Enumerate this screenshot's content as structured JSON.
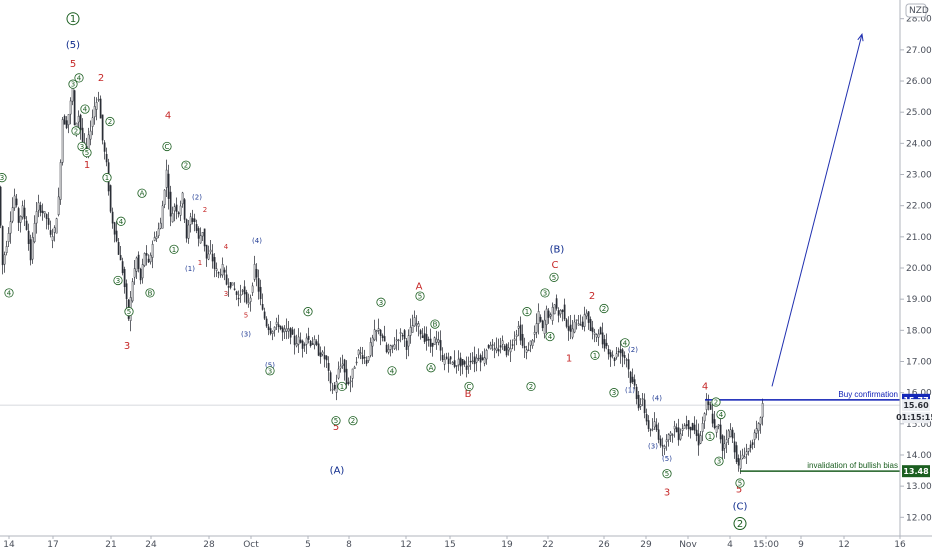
{
  "chart_data": {
    "type": "candlestick",
    "symbol": "NZD",
    "y_axis": {
      "ylim": [
        11.4,
        28.6
      ],
      "ticks": [
        "28.00",
        "27.00",
        "26.00",
        "25.00",
        "24.00",
        "23.00",
        "22.00",
        "21.00",
        "20.00",
        "19.00",
        "18.00",
        "17.00",
        "16.00",
        "15.00",
        "14.00",
        "13.00",
        "12.00"
      ]
    },
    "x_axis": {
      "ticks": [
        "14",
        "17",
        "21",
        "24",
        "28",
        "Oct",
        "5",
        "8",
        "12",
        "15",
        "19",
        "22",
        "26",
        "29",
        "Nov",
        "4",
        "15:00",
        "9",
        "12",
        "16"
      ]
    },
    "price_path": [
      [
        0,
        22.6
      ],
      [
        4,
        20.1
      ],
      [
        8,
        20.8
      ],
      [
        12,
        21.6
      ],
      [
        16,
        22.3
      ],
      [
        20,
        21.5
      ],
      [
        24,
        21.9
      ],
      [
        28,
        21.3
      ],
      [
        32,
        20.3
      ],
      [
        36,
        21.5
      ],
      [
        40,
        22.0
      ],
      [
        44,
        21.8
      ],
      [
        48,
        21.6
      ],
      [
        52,
        21.0
      ],
      [
        56,
        21.2
      ],
      [
        60,
        22.2
      ],
      [
        64,
        24.8
      ],
      [
        68,
        24.6
      ],
      [
        72,
        25.3
      ],
      [
        74,
        25.8
      ],
      [
        76,
        24.5
      ],
      [
        80,
        24.9
      ],
      [
        84,
        24.0
      ],
      [
        88,
        23.8
      ],
      [
        92,
        24.5
      ],
      [
        96,
        25.2
      ],
      [
        100,
        25.5
      ],
      [
        104,
        24.1
      ],
      [
        108,
        23.3
      ],
      [
        112,
        21.8
      ],
      [
        116,
        21.2
      ],
      [
        120,
        20.5
      ],
      [
        124,
        19.9
      ],
      [
        128,
        18.9
      ],
      [
        130,
        18.4
      ],
      [
        134,
        19.6
      ],
      [
        138,
        20.3
      ],
      [
        142,
        19.6
      ],
      [
        146,
        20.5
      ],
      [
        150,
        20.1
      ],
      [
        154,
        20.8
      ],
      [
        158,
        21.1
      ],
      [
        162,
        21.4
      ],
      [
        166,
        22.6
      ],
      [
        168,
        23.1
      ],
      [
        172,
        21.6
      ],
      [
        176,
        22.0
      ],
      [
        180,
        21.8
      ],
      [
        184,
        22.3
      ],
      [
        188,
        21.0
      ],
      [
        192,
        21.6
      ],
      [
        196,
        21.5
      ],
      [
        200,
        20.9
      ],
      [
        204,
        21.2
      ],
      [
        208,
        20.3
      ],
      [
        212,
        20.5
      ],
      [
        216,
        20.0
      ],
      [
        220,
        19.8
      ],
      [
        224,
        20.0
      ],
      [
        228,
        19.5
      ],
      [
        232,
        19.5
      ],
      [
        236,
        19.3
      ],
      [
        240,
        19.0
      ],
      [
        244,
        19.4
      ],
      [
        248,
        18.8
      ],
      [
        252,
        19.1
      ],
      [
        256,
        20.0
      ],
      [
        260,
        19.3
      ],
      [
        264,
        18.6
      ],
      [
        268,
        18.2
      ],
      [
        272,
        18.0
      ],
      [
        276,
        18.1
      ],
      [
        280,
        18.2
      ],
      [
        284,
        17.9
      ],
      [
        288,
        18.0
      ],
      [
        292,
        17.9
      ],
      [
        296,
        17.6
      ],
      [
        300,
        17.7
      ],
      [
        304,
        17.5
      ],
      [
        308,
        17.8
      ],
      [
        312,
        17.6
      ],
      [
        316,
        17.6
      ],
      [
        320,
        17.3
      ],
      [
        324,
        17.2
      ],
      [
        328,
        17.0
      ],
      [
        332,
        16.2
      ],
      [
        336,
        16.1
      ],
      [
        340,
        16.7
      ],
      [
        344,
        17.0
      ],
      [
        348,
        16.3
      ],
      [
        352,
        16.4
      ],
      [
        356,
        16.9
      ],
      [
        360,
        17.3
      ],
      [
        364,
        17.2
      ],
      [
        368,
        17.0
      ],
      [
        372,
        17.5
      ],
      [
        376,
        17.9
      ],
      [
        380,
        18.0
      ],
      [
        384,
        17.8
      ],
      [
        388,
        17.3
      ],
      [
        392,
        17.4
      ],
      [
        396,
        17.6
      ],
      [
        400,
        17.8
      ],
      [
        404,
        17.9
      ],
      [
        408,
        17.5
      ],
      [
        412,
        18.0
      ],
      [
        416,
        18.3
      ],
      [
        420,
        18.1
      ],
      [
        424,
        17.8
      ],
      [
        428,
        17.7
      ],
      [
        432,
        17.5
      ],
      [
        436,
        17.7
      ],
      [
        440,
        17.6
      ],
      [
        444,
        17.0
      ],
      [
        448,
        17.1
      ],
      [
        452,
        17.0
      ],
      [
        456,
        16.9
      ],
      [
        460,
        17.0
      ],
      [
        464,
        16.9
      ],
      [
        468,
        16.8
      ],
      [
        472,
        17.1
      ],
      [
        476,
        17.0
      ],
      [
        480,
        17.2
      ],
      [
        484,
        17.0
      ],
      [
        488,
        17.4
      ],
      [
        492,
        17.6
      ],
      [
        496,
        17.3
      ],
      [
        500,
        17.4
      ],
      [
        504,
        17.6
      ],
      [
        508,
        17.3
      ],
      [
        512,
        17.5
      ],
      [
        516,
        17.8
      ],
      [
        520,
        18.1
      ],
      [
        524,
        17.5
      ],
      [
        528,
        17.3
      ],
      [
        532,
        17.6
      ],
      [
        536,
        17.9
      ],
      [
        540,
        18.5
      ],
      [
        544,
        18.0
      ],
      [
        548,
        18.6
      ],
      [
        552,
        18.4
      ],
      [
        556,
        18.9
      ],
      [
        560,
        18.5
      ],
      [
        564,
        18.7
      ],
      [
        568,
        18.2
      ],
      [
        572,
        17.9
      ],
      [
        576,
        18.2
      ],
      [
        580,
        18.3
      ],
      [
        584,
        18.2
      ],
      [
        588,
        18.6
      ],
      [
        592,
        18.0
      ],
      [
        596,
        17.8
      ],
      [
        600,
        18.0
      ],
      [
        604,
        17.6
      ],
      [
        608,
        17.5
      ],
      [
        612,
        17.2
      ],
      [
        616,
        17.1
      ],
      [
        620,
        17.4
      ],
      [
        624,
        17.2
      ],
      [
        628,
        17.1
      ],
      [
        632,
        16.4
      ],
      [
        636,
        16.2
      ],
      [
        640,
        15.6
      ],
      [
        644,
        15.7
      ],
      [
        648,
        15.1
      ],
      [
        652,
        14.7
      ],
      [
        656,
        15.0
      ],
      [
        660,
        14.6
      ],
      [
        664,
        14.2
      ],
      [
        668,
        14.6
      ],
      [
        672,
        14.6
      ],
      [
        676,
        14.9
      ],
      [
        680,
        14.6
      ],
      [
        684,
        14.9
      ],
      [
        688,
        15.0
      ],
      [
        692,
        14.9
      ],
      [
        696,
        14.8
      ],
      [
        700,
        14.4
      ],
      [
        704,
        15.0
      ],
      [
        708,
        15.7
      ],
      [
        712,
        15.4
      ],
      [
        716,
        14.8
      ],
      [
        720,
        14.9
      ],
      [
        724,
        14.2
      ],
      [
        728,
        14.6
      ],
      [
        732,
        14.8
      ],
      [
        736,
        14.2
      ],
      [
        740,
        13.6
      ],
      [
        744,
        14.0
      ],
      [
        748,
        14.1
      ],
      [
        752,
        14.3
      ],
      [
        756,
        14.6
      ],
      [
        760,
        14.9
      ],
      [
        764,
        15.6
      ]
    ],
    "lines": [
      {
        "name": "Buy confirmation",
        "value": 15.77,
        "color": "#0d1db5",
        "from_x": 705
      },
      {
        "name": "invalidation of bullish bias",
        "value": 13.48,
        "color": "#1b5e20",
        "from_x": 740
      }
    ],
    "current_price": {
      "value": "15.60",
      "countdown": "01:15:15"
    },
    "arrow": {
      "from": [
        772,
        16.2
      ],
      "to": [
        862,
        27.5
      ],
      "color": "#2030b0"
    },
    "wave_labels": [
      {
        "t": "1",
        "x": 73,
        "y": 28.0,
        "style": "circ-big"
      },
      {
        "t": "(5)",
        "x": 73,
        "y": 27.15,
        "style": "blue"
      },
      {
        "t": "5",
        "x": 73,
        "y": 26.55,
        "style": "red"
      },
      {
        "t": "2",
        "x": 101,
        "y": 26.1,
        "style": "red"
      },
      {
        "t": "1",
        "x": 87,
        "y": 23.3,
        "style": "red"
      },
      {
        "t": "3",
        "x": 127,
        "y": 17.5,
        "style": "red"
      },
      {
        "t": "4",
        "x": 168,
        "y": 24.9,
        "style": "red"
      },
      {
        "t": "2",
        "x": 205,
        "y": 21.9,
        "style": "red-s"
      },
      {
        "t": "1",
        "x": 200,
        "y": 20.2,
        "style": "red-s"
      },
      {
        "t": "4",
        "x": 226,
        "y": 20.7,
        "style": "red-s"
      },
      {
        "t": "3",
        "x": 226,
        "y": 19.2,
        "style": "red-s"
      },
      {
        "t": "5",
        "x": 246,
        "y": 18.5,
        "style": "red-s"
      },
      {
        "t": "(2)",
        "x": 197,
        "y": 22.3,
        "style": "blue-s"
      },
      {
        "t": "(1)",
        "x": 190,
        "y": 20.0,
        "style": "blue-s"
      },
      {
        "t": "(4)",
        "x": 257,
        "y": 20.9,
        "style": "blue-s"
      },
      {
        "t": "(3)",
        "x": 246,
        "y": 17.9,
        "style": "blue-s"
      },
      {
        "t": "(5)",
        "x": 270,
        "y": 16.9,
        "style": "blue-s"
      },
      {
        "t": "A",
        "x": 419,
        "y": 19.4,
        "style": "red"
      },
      {
        "t": "B",
        "x": 468,
        "y": 15.95,
        "style": "red"
      },
      {
        "t": "5",
        "x": 336,
        "y": 14.9,
        "style": "red"
      },
      {
        "t": "(A)",
        "x": 337,
        "y": 13.5,
        "style": "blue"
      },
      {
        "t": "(B)",
        "x": 557,
        "y": 20.6,
        "style": "blue"
      },
      {
        "t": "C",
        "x": 555,
        "y": 20.1,
        "style": "red"
      },
      {
        "t": "2",
        "x": 592,
        "y": 19.1,
        "style": "red"
      },
      {
        "t": "1",
        "x": 569,
        "y": 17.1,
        "style": "red"
      },
      {
        "t": "4",
        "x": 705,
        "y": 16.2,
        "style": "red"
      },
      {
        "t": "3",
        "x": 667,
        "y": 12.8,
        "style": "red"
      },
      {
        "t": "5",
        "x": 739,
        "y": 12.9,
        "style": "red"
      },
      {
        "t": "(4)",
        "x": 657,
        "y": 15.85,
        "style": "blue-s"
      },
      {
        "t": "(1)",
        "x": 630,
        "y": 16.1,
        "style": "blue-s"
      },
      {
        "t": "(2)",
        "x": 633,
        "y": 17.4,
        "style": "blue-s"
      },
      {
        "t": "(3)",
        "x": 653,
        "y": 14.3,
        "style": "blue-s"
      },
      {
        "t": "(5)",
        "x": 667,
        "y": 13.9,
        "style": "blue-s"
      },
      {
        "t": "(C)",
        "x": 740,
        "y": 12.35,
        "style": "blue"
      },
      {
        "t": "2",
        "x": 740,
        "y": 11.8,
        "style": "circ-big"
      }
    ],
    "circled_labels": [
      {
        "t": "4",
        "x": 79,
        "y": 26.1
      },
      {
        "t": "3",
        "x": 73,
        "y": 25.9
      },
      {
        "t": "4",
        "x": 85,
        "y": 25.1
      },
      {
        "t": "2",
        "x": 76,
        "y": 24.4
      },
      {
        "t": "3",
        "x": 82,
        "y": 23.9
      },
      {
        "t": "5",
        "x": 87,
        "y": 23.7
      },
      {
        "t": "2",
        "x": 110,
        "y": 24.7
      },
      {
        "t": "3",
        "x": 2,
        "y": 22.9
      },
      {
        "t": "4",
        "x": 9,
        "y": 19.2
      },
      {
        "t": "1",
        "x": 107,
        "y": 22.9
      },
      {
        "t": "4",
        "x": 121,
        "y": 21.5
      },
      {
        "t": "3",
        "x": 118,
        "y": 19.6
      },
      {
        "t": "5",
        "x": 129,
        "y": 18.6
      },
      {
        "t": "B",
        "x": 150,
        "y": 19.2
      },
      {
        "t": "A",
        "x": 142,
        "y": 22.4
      },
      {
        "t": "1",
        "x": 174,
        "y": 20.6
      },
      {
        "t": "C",
        "x": 167,
        "y": 23.9
      },
      {
        "t": "2",
        "x": 186,
        "y": 23.3
      },
      {
        "t": "3",
        "x": 270,
        "y": 16.7
      },
      {
        "t": "4",
        "x": 308,
        "y": 18.6
      },
      {
        "t": "1",
        "x": 342,
        "y": 16.2
      },
      {
        "t": "2",
        "x": 353,
        "y": 15.1
      },
      {
        "t": "5",
        "x": 336,
        "y": 15.1
      },
      {
        "t": "3",
        "x": 381,
        "y": 18.9
      },
      {
        "t": "4",
        "x": 392,
        "y": 16.7
      },
      {
        "t": "5",
        "x": 420,
        "y": 19.1
      },
      {
        "t": "B",
        "x": 435,
        "y": 18.2
      },
      {
        "t": "A",
        "x": 431,
        "y": 16.8
      },
      {
        "t": "C",
        "x": 469,
        "y": 16.2
      },
      {
        "t": "1",
        "x": 527,
        "y": 18.6
      },
      {
        "t": "2",
        "x": 531,
        "y": 16.2
      },
      {
        "t": "3",
        "x": 545,
        "y": 19.2
      },
      {
        "t": "4",
        "x": 550,
        "y": 17.8
      },
      {
        "t": "5",
        "x": 554,
        "y": 19.7
      },
      {
        "t": "2",
        "x": 604,
        "y": 18.7
      },
      {
        "t": "1",
        "x": 595,
        "y": 17.2
      },
      {
        "t": "3",
        "x": 614,
        "y": 16.0
      },
      {
        "t": "4",
        "x": 625,
        "y": 17.6
      },
      {
        "t": "2",
        "x": 716,
        "y": 15.7
      },
      {
        "t": "1",
        "x": 710,
        "y": 14.6
      },
      {
        "t": "4",
        "x": 721,
        "y": 15.3
      },
      {
        "t": "3",
        "x": 719,
        "y": 13.8
      },
      {
        "t": "5",
        "x": 740,
        "y": 13.1
      },
      {
        "t": "5",
        "x": 667,
        "y": 13.4
      }
    ]
  }
}
